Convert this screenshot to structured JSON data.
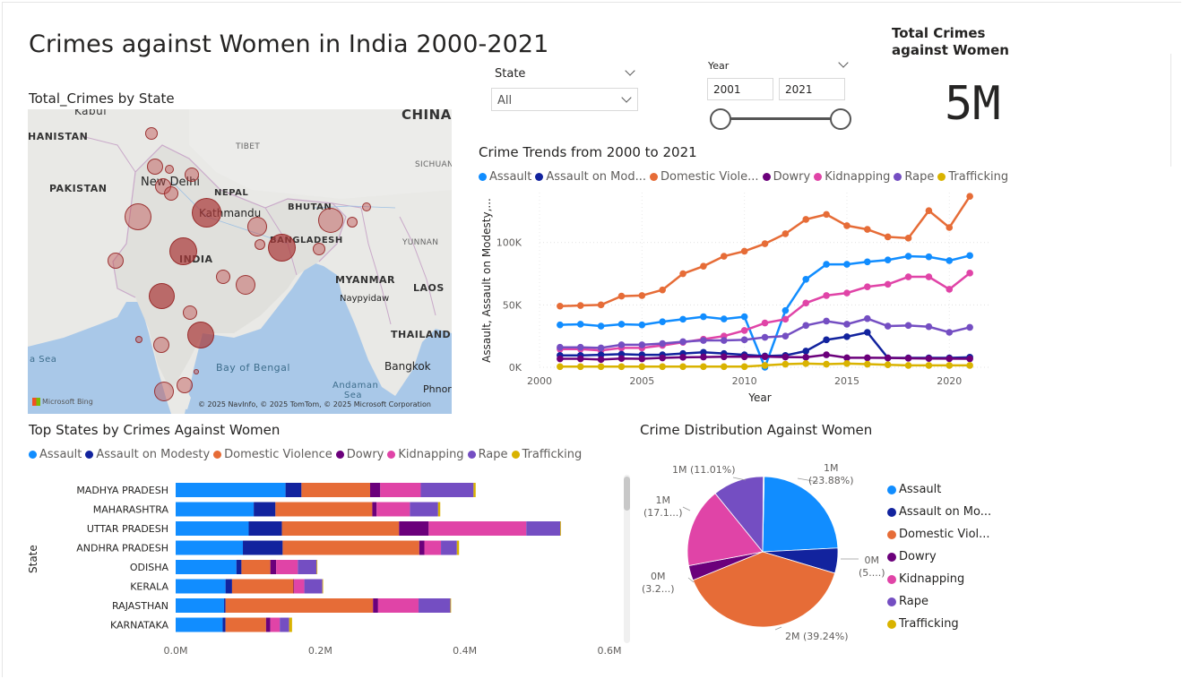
{
  "header": {
    "title": "Crimes against Women in India 2000-2021"
  },
  "slicers": {
    "state": {
      "label": "State",
      "value": "All"
    },
    "year": {
      "label": "Year",
      "from": "2001",
      "to": "2021"
    }
  },
  "kpi": {
    "title": "Total Crimes against Women",
    "value": "5M"
  },
  "map": {
    "title": "Total_Crimes by State",
    "labels": {
      "kabul": "Kabul",
      "afghanistan": "HANISTAN",
      "pakistan": "PAKISTAN",
      "china": "CHINA",
      "tibet": "TIBET",
      "sichuan": "SICHUAN",
      "new_delhi": "New Delhi",
      "nepal": "NEPAL",
      "kathmandu": "Kathmandu",
      "bhutan": "BHUTAN",
      "india": "INDIA",
      "bangladesh": "BANGLADESH",
      "yunnan": "YUNNAN",
      "myanmar": "MYANMAR",
      "naypyidaw": "Naypyidaw",
      "laos": "LAOS",
      "thailand": "THAILAND",
      "bangkok": "Bangkok",
      "bay_of_bengal": "Bay of Bengal",
      "andaman_sea": "Andaman Sea",
      "arabian_sea": "a Sea",
      "phnom": "Phnor"
    },
    "attribution": "© 2025 NavInfo, © 2025 TomTom, © 2025 Microsoft Corporation",
    "bing": "Microsoft Bing"
  },
  "colors": {
    "Assault": "#118DFF",
    "Assault on Modesty": "#12239E",
    "Domestic Violence": "#E66C37",
    "Dowry": "#6B007B",
    "Kidnapping": "#E044A7",
    "Rape": "#744EC2",
    "Trafficking": "#D9B300"
  },
  "line_chart": {
    "title": "Crime Trends from 2000 to 2021",
    "legend": [
      "Assault",
      "Assault on Mod...",
      "Domestic Viole...",
      "Dowry",
      "Kidnapping",
      "Rape",
      "Trafficking"
    ],
    "ylabel": "Assault, Assault on Modesty,...",
    "xlabel": "Year",
    "y_ticks": [
      "100K",
      "50K",
      "0K"
    ],
    "x_ticks": [
      "2000",
      "2005",
      "2010",
      "2015",
      "2020"
    ]
  },
  "bar_chart": {
    "title": "Top States by Crimes Against Women",
    "legend": [
      "Assault",
      "Assault on Modesty",
      "Domestic Violence",
      "Dowry",
      "Kidnapping",
      "Rape",
      "Trafficking"
    ],
    "ylabel": "State",
    "x_ticks": [
      "0.0M",
      "0.2M",
      "0.4M",
      "0.6M"
    ]
  },
  "pie_chart": {
    "title": "Crime Distribution Against Women",
    "legend": [
      "Assault",
      "Assault on Mo...",
      "Domestic Viol...",
      "Dowry",
      "Kidnapping",
      "Rape",
      "Trafficking"
    ],
    "annotations": {
      "assault": [
        "1M",
        "(23.88%)"
      ],
      "modesty": [
        "0M",
        "(5....)"
      ],
      "domestic": [
        "2M (39.24%)"
      ],
      "dowry": [
        "0M",
        "(3.2...)"
      ],
      "kidnapping": [
        "1M",
        "(17.1...)"
      ],
      "rape": [
        "1M (11.01%)"
      ]
    }
  },
  "chart_data": [
    {
      "type": "line",
      "title": "Crime Trends from 2000 to 2021",
      "xlabel": "Year",
      "ylabel": "Assault, Assault on Modesty,...",
      "ylim": [
        0,
        140000
      ],
      "xlim": [
        2000,
        2022
      ],
      "x": [
        2001,
        2002,
        2003,
        2004,
        2005,
        2006,
        2007,
        2008,
        2009,
        2010,
        2011,
        2012,
        2013,
        2014,
        2015,
        2016,
        2017,
        2018,
        2019,
        2020,
        2021
      ],
      "series": [
        {
          "name": "Domestic Violence",
          "values": [
            49000,
            49500,
            50000,
            57000,
            57500,
            62000,
            75000,
            81000,
            89000,
            93000,
            99000,
            107000,
            118500,
            122500,
            113500,
            110500,
            104500,
            103500,
            125500,
            112000,
            137000
          ]
        },
        {
          "name": "Assault",
          "values": [
            34000,
            34500,
            33000,
            34500,
            34000,
            36500,
            38500,
            40500,
            38700,
            40500,
            0,
            45500,
            70500,
            82500,
            82500,
            84500,
            86000,
            89000,
            88500,
            85500,
            89500
          ]
        },
        {
          "name": "Kidnapping",
          "values": [
            14500,
            14500,
            13500,
            15500,
            15500,
            17500,
            20000,
            22500,
            25000,
            29500,
            35500,
            38500,
            51500,
            57500,
            59500,
            64500,
            66500,
            72500,
            72500,
            62500,
            75500
          ]
        },
        {
          "name": "Rape",
          "values": [
            16000,
            16000,
            15500,
            18000,
            18000,
            19000,
            20500,
            21500,
            21500,
            22000,
            24000,
            25000,
            33500,
            37000,
            34500,
            39000,
            33000,
            33500,
            32500,
            28000,
            32000
          ]
        },
        {
          "name": "Assault on Modesty",
          "values": [
            9500,
            9500,
            10000,
            10500,
            10000,
            10000,
            11000,
            12000,
            11000,
            10000,
            9000,
            9500,
            13000,
            22000,
            24500,
            28000,
            7500,
            7500,
            7500,
            7500,
            8000
          ]
        },
        {
          "name": "Dowry",
          "values": [
            6800,
            6800,
            6200,
            7000,
            6800,
            7500,
            8000,
            8200,
            8400,
            8400,
            8500,
            8200,
            8000,
            10000,
            7600,
            7600,
            7500,
            7200,
            7000,
            6900,
            6800
          ]
        },
        {
          "name": "Trafficking",
          "values": [
            500,
            500,
            500,
            500,
            500,
            500,
            500,
            500,
            500,
            500,
            1500,
            2500,
            3000,
            2500,
            3000,
            2500,
            2000,
            1500,
            1500,
            1500,
            1500
          ]
        }
      ]
    },
    {
      "type": "bar",
      "title": "Top States by Crimes Against Women",
      "ylabel": "State",
      "xlim": [
        0,
        600000
      ],
      "categories": [
        "MADHYA PRADESH",
        "MAHARASHTRA",
        "UTTAR PRADESH",
        "ANDHRA PRADESH",
        "ODISHA",
        "KERALA",
        "RAJASTHAN",
        "KARNATAKA"
      ],
      "series": [
        {
          "name": "Assault",
          "values": [
            152000,
            108000,
            101000,
            93000,
            84000,
            69000,
            67000,
            65000
          ]
        },
        {
          "name": "Assault on Modesty",
          "values": [
            22000,
            30000,
            46000,
            55000,
            7000,
            9000,
            2000,
            4000
          ]
        },
        {
          "name": "Domestic Violence",
          "values": [
            95000,
            134000,
            162000,
            189000,
            40000,
            85000,
            204000,
            56000
          ]
        },
        {
          "name": "Dowry",
          "values": [
            14000,
            6000,
            41000,
            7000,
            8000,
            1000,
            7000,
            6000
          ]
        },
        {
          "name": "Kidnapping",
          "values": [
            56000,
            46000,
            135000,
            23000,
            30000,
            14000,
            56000,
            13000
          ]
        },
        {
          "name": "Rape",
          "values": [
            73000,
            39000,
            47000,
            22000,
            26000,
            25000,
            44000,
            13000
          ]
        },
        {
          "name": "Trafficking",
          "values": [
            3000,
            3000,
            1000,
            3000,
            1000,
            1000,
            1000,
            4000
          ]
        }
      ]
    },
    {
      "type": "pie",
      "title": "Crime Distribution Against Women",
      "labels": [
        "Assault",
        "Assault on Modesty",
        "Domestic Violence",
        "Dowry",
        "Kidnapping",
        "Rape",
        "Trafficking"
      ],
      "values": [
        23.88,
        5.4,
        39.24,
        3.2,
        17.1,
        11.01,
        0.17
      ]
    }
  ]
}
